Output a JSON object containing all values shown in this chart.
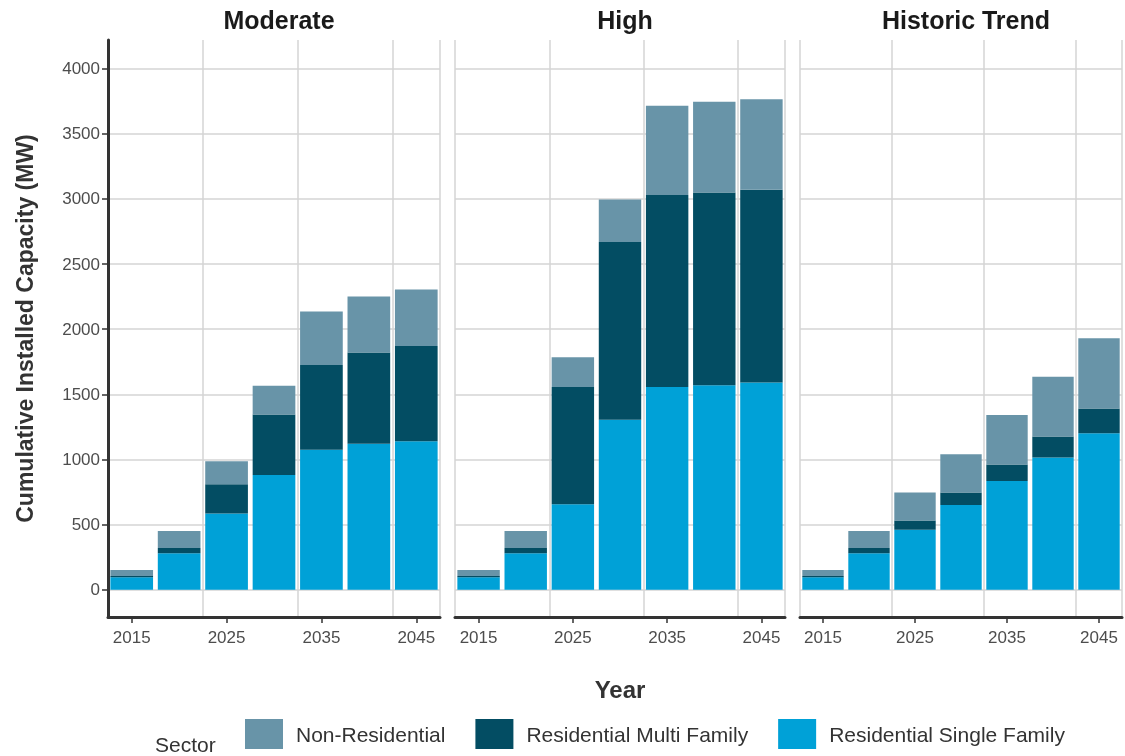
{
  "chart_data": [
    {
      "type": "bar",
      "title": "Moderate",
      "ylabel": "Cumulative Installed Capacity (MW)",
      "stacked": true,
      "categories": [
        "2015",
        null,
        "2025",
        null,
        "2035",
        null,
        "2045"
      ],
      "ylim": [
        -210,
        4220
      ],
      "yticks": [
        0,
        500,
        1000,
        1500,
        2000,
        2500,
        3000,
        3500,
        4000
      ],
      "grid": true,
      "series": [
        {
          "color": "#00a1d7",
          "values": [
            95,
            280,
            585,
            880,
            1075,
            1120,
            1140
          ]
        },
        {
          "color": "#034d63",
          "values": [
            10,
            40,
            225,
            465,
            650,
            700,
            730
          ]
        },
        {
          "color": "#6894a8",
          "values": [
            45,
            130,
            175,
            220,
            410,
            430,
            435
          ]
        }
      ]
    },
    {
      "type": "bar",
      "title": "High",
      "xlabel": "Year",
      "legend": "bottom",
      "legend_title": "Sector",
      "stacked": true,
      "categories": [
        "2015",
        null,
        "2025",
        null,
        "2035",
        null,
        "2045"
      ],
      "ylim": [
        -210,
        4220
      ],
      "yticks": [
        0,
        500,
        1000,
        1500,
        2000,
        2500,
        3000,
        3500,
        4000
      ],
      "grid": true,
      "tick_labels": "x",
      "series": [
        {
          "name": "Residential Single Family",
          "color": "#00a1d7",
          "values": [
            95,
            280,
            655,
            1305,
            1555,
            1570,
            1590
          ]
        },
        {
          "name": "Residential Multi Family",
          "color": "#034d63",
          "values": [
            10,
            40,
            900,
            1365,
            1475,
            1480,
            1480
          ]
        },
        {
          "name": "Non-Residential",
          "color": "#6894a8",
          "values": [
            45,
            130,
            230,
            325,
            685,
            695,
            695
          ]
        }
      ]
    },
    {
      "type": "bar",
      "title": "Historic Trend",
      "stacked": true,
      "categories": [
        "2015",
        null,
        "2025",
        null,
        "2035",
        null,
        "2045"
      ],
      "ylim": [
        -210,
        4220
      ],
      "yticks": [
        0,
        500,
        1000,
        1500,
        2000,
        2500,
        3000,
        3500,
        4000
      ],
      "grid": true,
      "tick_labels": "x",
      "series": [
        {
          "color": "#00a1d7",
          "values": [
            95,
            280,
            460,
            650,
            835,
            1015,
            1200
          ]
        },
        {
          "color": "#034d63",
          "values": [
            10,
            40,
            70,
            95,
            125,
            160,
            190
          ]
        },
        {
          "color": "#6894a8",
          "values": [
            45,
            130,
            215,
            295,
            380,
            460,
            540
          ]
        }
      ]
    }
  ]
}
